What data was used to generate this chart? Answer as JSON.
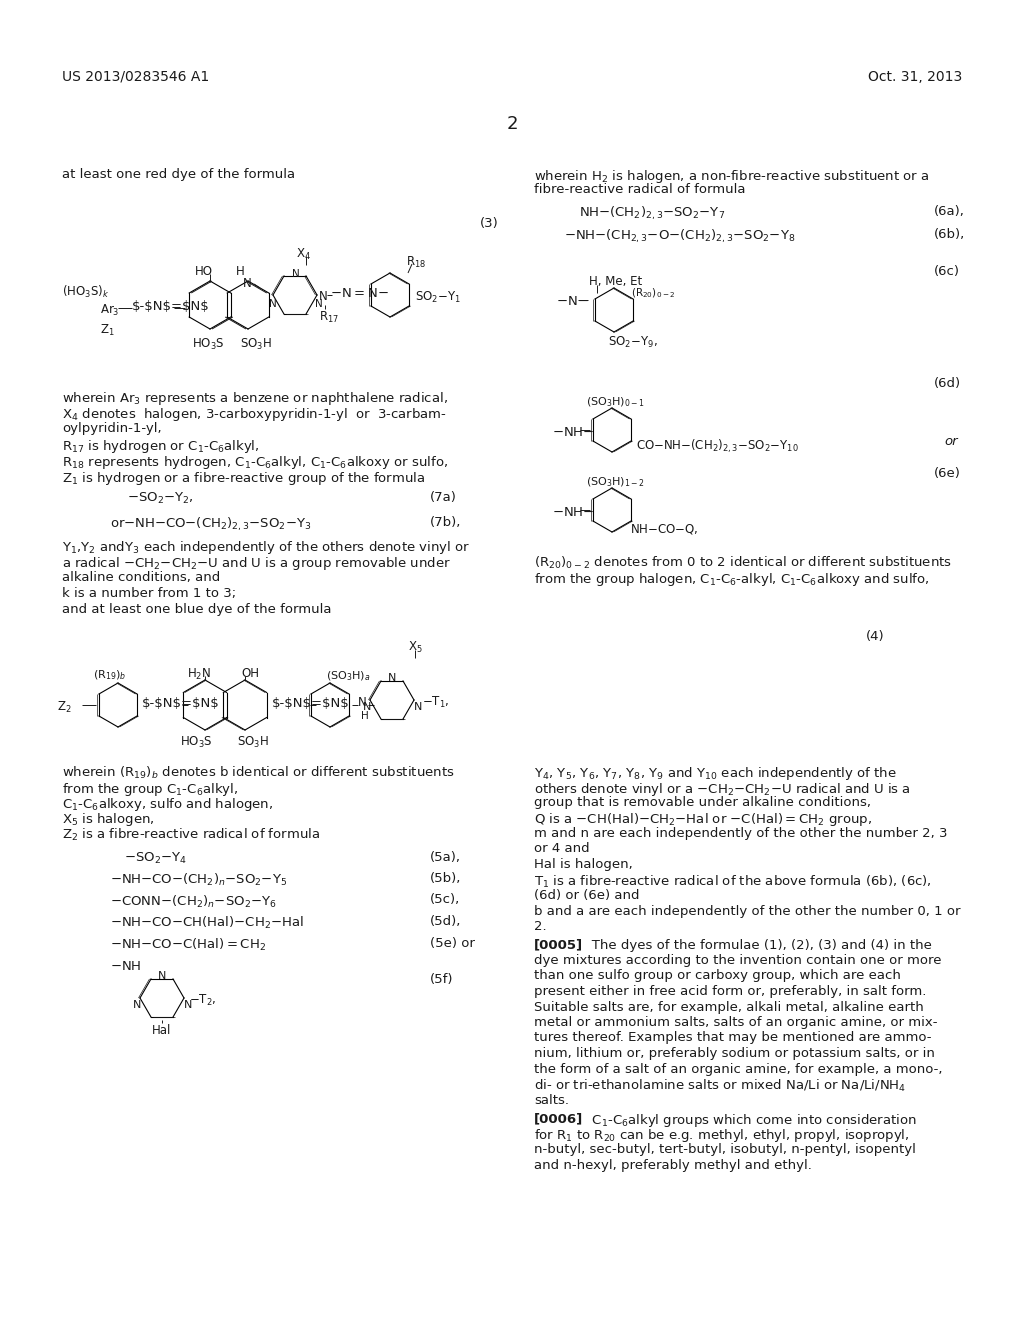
{
  "bg": "#ffffff",
  "fg": "#1a1a1a",
  "header_left": "US 2013/0283546 A1",
  "header_right": "Oct. 31, 2013",
  "page_num": "2",
  "lm": 62,
  "rm": 962,
  "mid": 512,
  "col2": 534
}
